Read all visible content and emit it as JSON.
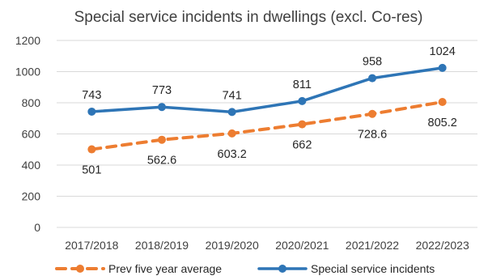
{
  "chart_data": {
    "type": "line",
    "title": "Special service incidents in dwellings (excl. Co-res)",
    "xlabel": "",
    "ylabel": "",
    "categories": [
      "2017/2018",
      "2018/2019",
      "2019/2020",
      "2020/2021",
      "2021/2022",
      "2022/2023"
    ],
    "ylim": [
      0,
      1200
    ],
    "yticks": [
      "0",
      "200",
      "400",
      "600",
      "800",
      "1000",
      "1200"
    ],
    "grid": true,
    "legend_position": "bottom",
    "series": [
      {
        "name": "Special service incidents",
        "values": [
          743,
          773,
          741,
          811,
          958,
          1024
        ],
        "labels": [
          "743",
          "773",
          "741",
          "811",
          "958",
          "1024"
        ],
        "color": "#2e75b6",
        "style": "solid",
        "label_position": "above"
      },
      {
        "name": "Prev five year average",
        "values": [
          501,
          562.6,
          603.2,
          662,
          728.6,
          805.2
        ],
        "labels": [
          "501",
          "562.6",
          "603.2",
          "662",
          "728.6",
          "805.2"
        ],
        "color": "#ed7d31",
        "style": "dashed",
        "label_position": "below"
      }
    ],
    "legend_order": [
      "Prev five year average",
      "Special service incidents"
    ]
  }
}
